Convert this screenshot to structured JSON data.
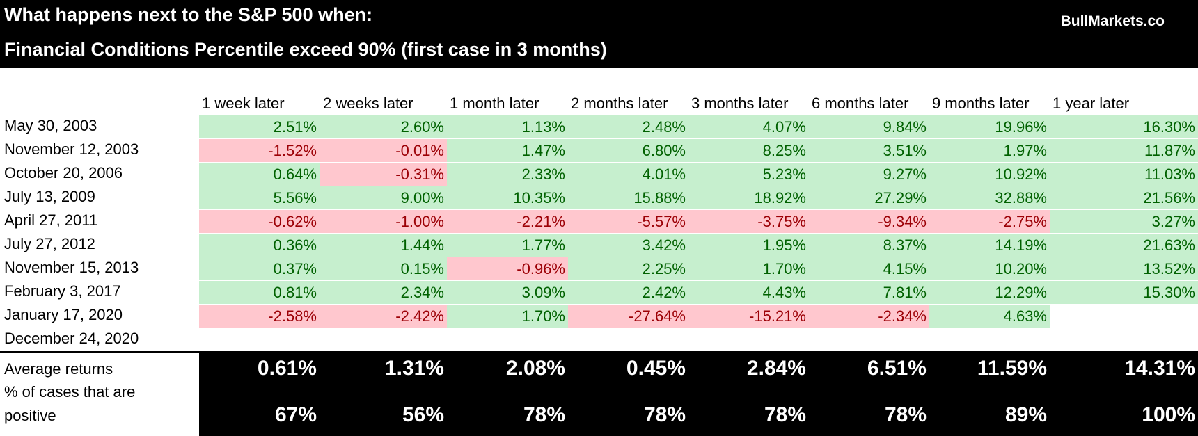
{
  "header": {
    "line1": "What happens next to the S&P 500 when:",
    "line2": "Financial Conditions Percentile exceed 90% (first case in 3 months)",
    "brand": "BullMarkets.co"
  },
  "colors": {
    "positive_bg": "#c6efce",
    "positive_text": "#006100",
    "negative_bg": "#ffc7ce",
    "negative_text": "#9c0006"
  },
  "chart_data": {
    "type": "table",
    "columns": [
      "1 week later",
      "2 weeks later",
      "1 month later",
      "2 months later",
      "3 months later",
      "6 months later",
      "9 months later",
      "1 year later"
    ],
    "rows": [
      {
        "date": "May 30, 2003",
        "values": [
          "2.51%",
          "2.60%",
          "1.13%",
          "2.48%",
          "4.07%",
          "9.84%",
          "19.96%",
          "16.30%"
        ]
      },
      {
        "date": "November 12, 2003",
        "values": [
          "-1.52%",
          "-0.01%",
          "1.47%",
          "6.80%",
          "8.25%",
          "3.51%",
          "1.97%",
          "11.87%"
        ]
      },
      {
        "date": "October 20, 2006",
        "values": [
          "0.64%",
          "-0.31%",
          "2.33%",
          "4.01%",
          "5.23%",
          "9.27%",
          "10.92%",
          "11.03%"
        ]
      },
      {
        "date": "July 13, 2009",
        "values": [
          "5.56%",
          "9.00%",
          "10.35%",
          "15.88%",
          "18.92%",
          "27.29%",
          "32.88%",
          "21.56%"
        ]
      },
      {
        "date": "April 27, 2011",
        "values": [
          "-0.62%",
          "-1.00%",
          "-2.21%",
          "-5.57%",
          "-3.75%",
          "-9.34%",
          "-2.75%",
          "3.27%"
        ]
      },
      {
        "date": "July 27, 2012",
        "values": [
          "0.36%",
          "1.44%",
          "1.77%",
          "3.42%",
          "1.95%",
          "8.37%",
          "14.19%",
          "21.63%"
        ]
      },
      {
        "date": "November 15, 2013",
        "values": [
          "0.37%",
          "0.15%",
          "-0.96%",
          "2.25%",
          "1.70%",
          "4.15%",
          "10.20%",
          "13.52%"
        ]
      },
      {
        "date": "February 3, 2017",
        "values": [
          "0.81%",
          "2.34%",
          "3.09%",
          "2.42%",
          "4.43%",
          "7.81%",
          "12.29%",
          "15.30%"
        ]
      },
      {
        "date": "January 17, 2020",
        "values": [
          "-2.58%",
          "-2.42%",
          "1.70%",
          "-27.64%",
          "-15.21%",
          "-2.34%",
          "4.63%",
          ""
        ]
      },
      {
        "date": "December 24, 2020",
        "values": [
          "",
          "",
          "",
          "",
          "",
          "",
          "",
          ""
        ]
      }
    ],
    "summary": {
      "average_label": "Average returns",
      "average": [
        "0.61%",
        "1.31%",
        "2.08%",
        "0.45%",
        "2.84%",
        "6.51%",
        "11.59%",
        "14.31%"
      ],
      "positive_label_line1": "% of cases that are",
      "positive_label_line2": "positive",
      "positive": [
        "67%",
        "56%",
        "78%",
        "78%",
        "78%",
        "78%",
        "89%",
        "100%"
      ]
    }
  }
}
